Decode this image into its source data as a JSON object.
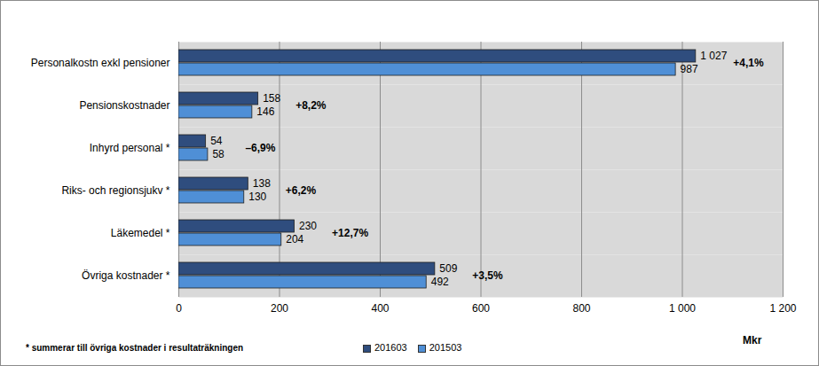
{
  "chart_data": {
    "type": "bar",
    "orientation": "horizontal",
    "categories": [
      "Personalkostn exkl pensioner",
      "Pensionskostnader",
      "Inhyrd personal *",
      "Riks- och regionsjukv *",
      "Läkemedel *",
      "Övriga kostnader *"
    ],
    "series": [
      {
        "name": "201603",
        "color": "#2f4d7e",
        "values": [
          1027,
          158,
          54,
          138,
          230,
          509
        ],
        "value_labels": [
          "1 027",
          "158",
          "54",
          "138",
          "230",
          "509"
        ]
      },
      {
        "name": "201503",
        "color": "#4f8fd6",
        "values": [
          987,
          146,
          58,
          130,
          204,
          492
        ],
        "value_labels": [
          "987",
          "146",
          "58",
          "130",
          "204",
          "492"
        ]
      }
    ],
    "annotations": [
      "+4,1%",
      "+8,2%",
      "–6,9%",
      "+6,2%",
      "+12,7%",
      "+3,5%"
    ],
    "xlabel": "Mkr",
    "xlim": [
      0,
      1200
    ],
    "xticks": [
      0,
      200,
      400,
      600,
      800,
      {
        "value": 1000,
        "label": "1 000"
      },
      {
        "value": 1200,
        "label": "1 200"
      }
    ],
    "footnote": "* summerar till övriga kostnader i resultaträkningen",
    "grid": true,
    "legend": "bottom",
    "data_labels": true
  }
}
